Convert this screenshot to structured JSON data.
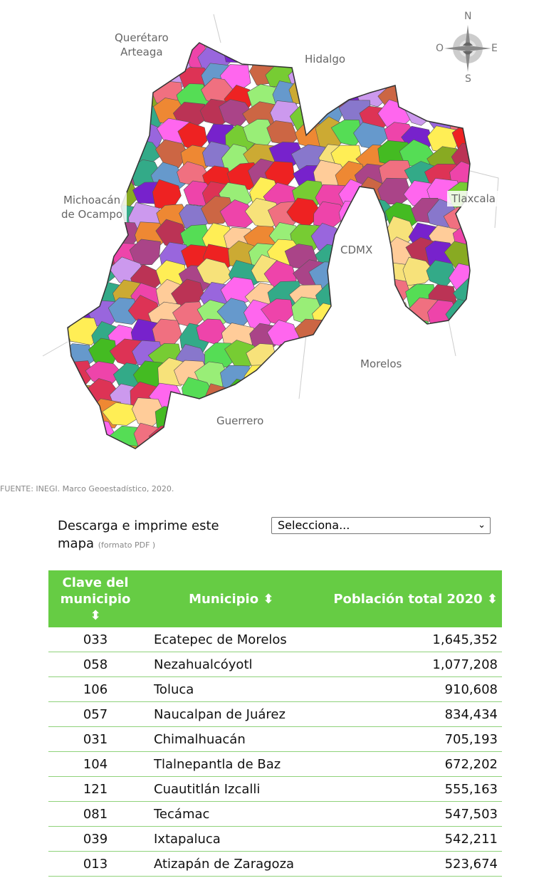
{
  "map": {
    "labels": {
      "queretaro": "Querétaro\nArteaga",
      "hidalgo": "Hidalgo",
      "michoacan": "Michoacán\nde Ocampo",
      "tlaxcala": "Tlaxcala",
      "cdmx": "CDMX",
      "morelos": "Morelos",
      "guerrero": "Guerrero"
    },
    "compass": {
      "n": "N",
      "s": "S",
      "e": "E",
      "o": "O"
    },
    "palette": [
      "#f7e27a",
      "#44bb22",
      "#7722cc",
      "#f07080",
      "#ee8833",
      "#55dd55",
      "#aa4488",
      "#cc6644",
      "#77cc33",
      "#9966dd",
      "#ee44aa",
      "#ccaa33",
      "#6699cc",
      "#ffee55",
      "#8877cc",
      "#dd3355",
      "#99ee77",
      "#ff66ee",
      "#88aa22",
      "#bb3355",
      "#ffcc99",
      "#33aa88",
      "#ee2222",
      "#cc99ee"
    ]
  },
  "source": "FUENTE: INEGI. Marco Geoestadístico, 2020.",
  "download": {
    "label": "Descarga e imprime este mapa",
    "format": "(formato PDF )",
    "select": "Selecciona..."
  },
  "table": {
    "headers": [
      "Clave del municipio",
      "Municipio",
      "Población total 2020"
    ],
    "sort_icon": "⬍",
    "rows": [
      [
        "033",
        "Ecatepec de Morelos",
        "1,645,352"
      ],
      [
        "058",
        "Nezahualcóyotl",
        "1,077,208"
      ],
      [
        "106",
        "Toluca",
        "910,608"
      ],
      [
        "057",
        "Naucalpan de Juárez",
        "834,434"
      ],
      [
        "031",
        "Chimalhuacán",
        "705,193"
      ],
      [
        "104",
        "Tlalnepantla de Baz",
        "672,202"
      ],
      [
        "121",
        "Cuautitlán Izcalli",
        "555,163"
      ],
      [
        "081",
        "Tecámac",
        "547,503"
      ],
      [
        "039",
        "Ixtapaluca",
        "542,211"
      ],
      [
        "013",
        "Atizapán de Zaragoza",
        "523,674"
      ]
    ]
  }
}
